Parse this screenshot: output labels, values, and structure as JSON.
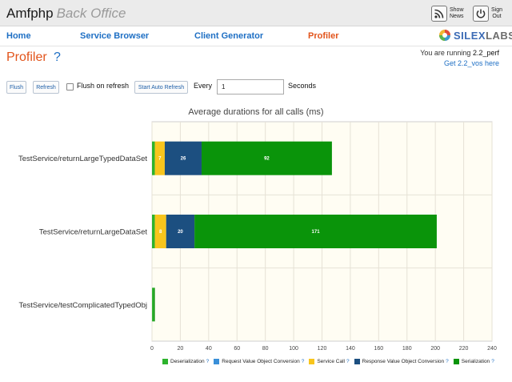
{
  "header": {
    "title": "Amfphp",
    "subtitle": "Back Office",
    "show_news_label": "Show News",
    "sign_out_label": "Sign Out"
  },
  "nav": {
    "items": [
      {
        "label": "Home",
        "active": false
      },
      {
        "label": "Service Browser",
        "active": false
      },
      {
        "label": "Client Generator",
        "active": false
      },
      {
        "label": "Profiler",
        "active": true
      }
    ],
    "logo_text_a": "SILEX",
    "logo_text_b": "LABS"
  },
  "page": {
    "title": "Profiler",
    "help": "?",
    "version_prefix": "You are running",
    "version": "2.2_perf",
    "version_link": "Get 2.2_vos here"
  },
  "toolbar": {
    "flush_label": "Flush",
    "refresh_label": "Refresh",
    "flush_on_refresh_label": "Flush on refresh",
    "flush_on_refresh_checked": false,
    "auto_refresh_label": "Start Auto Refresh",
    "every_label": "Every",
    "every_value": "1",
    "seconds_label": "Seconds"
  },
  "colors": {
    "deserialization": "#2db32d",
    "request_conversion": "#3a8fd8",
    "service_call": "#f8c51c",
    "response_conversion": "#1c4f80",
    "serialization": "#0a940a",
    "plot_bg": "#fffdf3"
  },
  "chart_data": {
    "type": "bar",
    "orientation": "horizontal",
    "stacked": true,
    "title": "Average durations for all calls (ms)",
    "categories": [
      "TestService/returnLargeTypedDataSet",
      "TestService/returnLargeDataSet",
      "TestService/testComplicatedTypedObj"
    ],
    "series": [
      {
        "name": "Deserialization",
        "color": "#2db32d",
        "values": [
          2,
          2,
          1
        ]
      },
      {
        "name": "Request Value Object Conversion",
        "color": "#3a8fd8",
        "values": [
          0,
          0,
          0
        ]
      },
      {
        "name": "Service Call",
        "color": "#f8c51c",
        "values": [
          7,
          8,
          0
        ]
      },
      {
        "name": "Response Value Object Conversion",
        "color": "#1c4f80",
        "values": [
          26,
          20,
          0
        ]
      },
      {
        "name": "Serialization",
        "color": "#0a940a",
        "values": [
          92,
          171,
          1
        ]
      }
    ],
    "xlim": [
      0,
      240
    ],
    "xticks": [
      0,
      20,
      40,
      60,
      80,
      100,
      120,
      140,
      160,
      180,
      200,
      220,
      240
    ],
    "grid": true,
    "legend_position": "bottom"
  }
}
